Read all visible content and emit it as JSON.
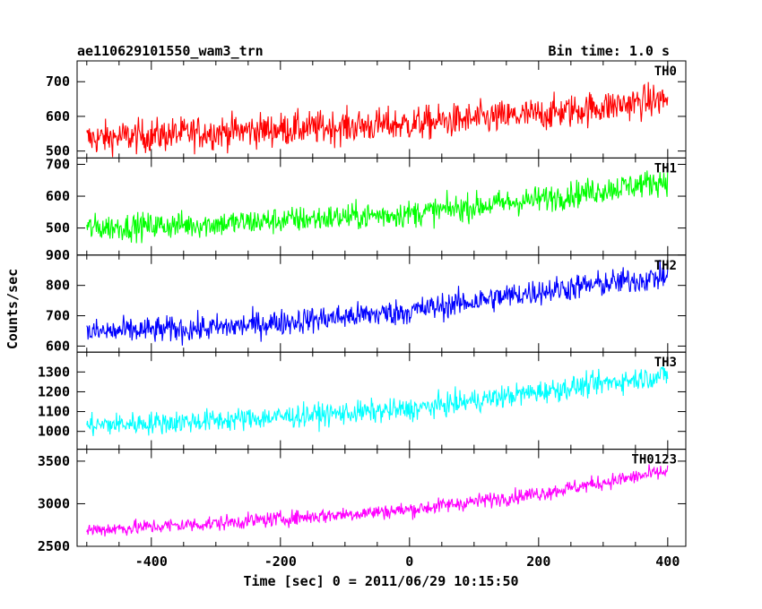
{
  "chart_data": {
    "type": "line",
    "title_left": "ae110629101550_wam3_trn",
    "title_right": "Bin time: 1.0 s",
    "xlabel": "Time [sec] 0 = 2011/06/29 10:15:50",
    "ylabel": "Counts/sec",
    "xlim": [
      -515,
      428
    ],
    "xticks": [
      -400,
      -200,
      0,
      200,
      400
    ],
    "x_start": -500,
    "x_end": 400,
    "bin_time": 1.0,
    "grid": false,
    "panels": [
      {
        "name": "TH0",
        "color": "#ff0000",
        "ylim": [
          480,
          760
        ],
        "yticks": [
          500,
          600,
          700
        ],
        "trend": [
          [
            -500,
            535
          ],
          [
            -300,
            555
          ],
          [
            0,
            578
          ],
          [
            200,
            605
          ],
          [
            400,
            650
          ]
        ],
        "noise": 38
      },
      {
        "name": "TH1",
        "color": "#00ff00",
        "ylim": [
          415,
          720
        ],
        "yticks": [
          500,
          600,
          700
        ],
        "trend": [
          [
            -500,
            500
          ],
          [
            -300,
            513
          ],
          [
            0,
            545
          ],
          [
            200,
            590
          ],
          [
            400,
            650
          ]
        ],
        "noise": 33
      },
      {
        "name": "TH2",
        "color": "#0000ff",
        "ylim": [
          580,
          900
        ],
        "yticks": [
          600,
          700,
          800,
          900
        ],
        "trend": [
          [
            -500,
            645
          ],
          [
            -300,
            660
          ],
          [
            0,
            715
          ],
          [
            200,
            780
          ],
          [
            400,
            830
          ]
        ],
        "noise": 34
      },
      {
        "name": "TH3",
        "color": "#00ffff",
        "ylim": [
          910,
          1400
        ],
        "yticks": [
          1000,
          1100,
          1200,
          1300
        ],
        "trend": [
          [
            -500,
            1030
          ],
          [
            -300,
            1055
          ],
          [
            0,
            1110
          ],
          [
            200,
            1200
          ],
          [
            400,
            1285
          ]
        ],
        "noise": 45
      },
      {
        "name": "TH0123",
        "color": "#ff00ff",
        "ylim": [
          2500,
          3640
        ],
        "yticks": [
          2500,
          3000,
          3500
        ],
        "trend": [
          [
            -500,
            2690
          ],
          [
            -300,
            2770
          ],
          [
            0,
            2930
          ],
          [
            200,
            3120
          ],
          [
            400,
            3380
          ]
        ],
        "noise": 70
      }
    ]
  }
}
